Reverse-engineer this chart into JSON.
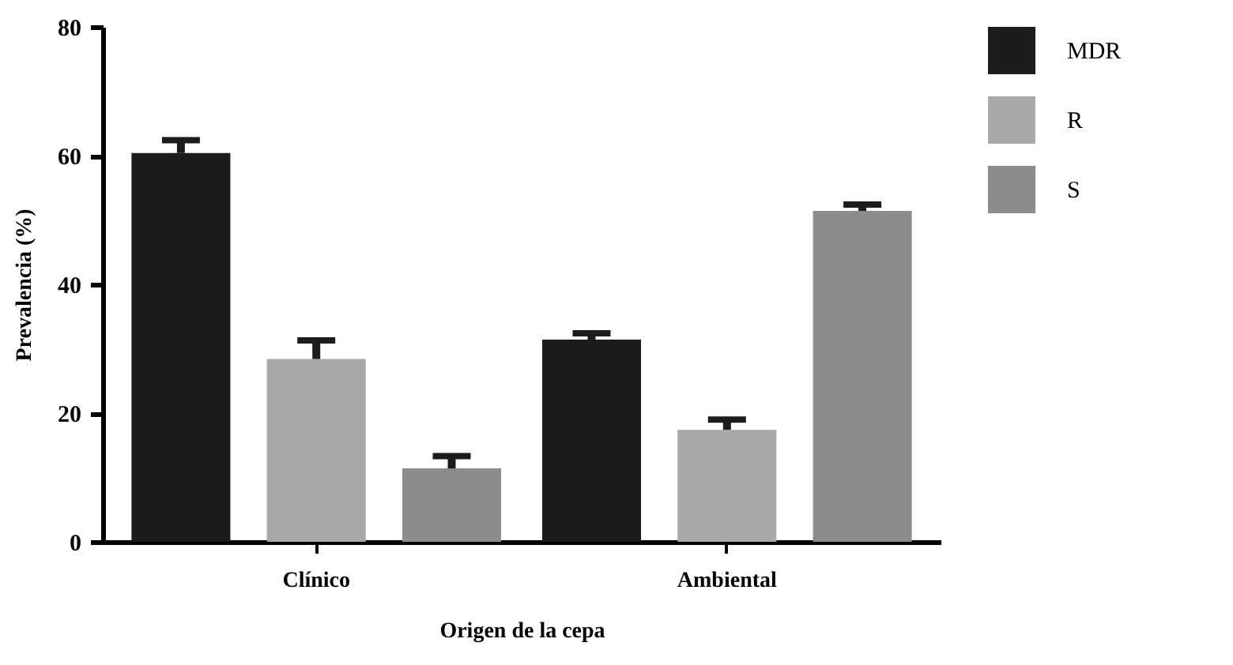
{
  "chart_data": {
    "type": "bar",
    "xlabel": "Origen de la cepa",
    "ylabel": "Prevalencia (%)",
    "categories": [
      "Clínico",
      "Ambiental"
    ],
    "series": [
      {
        "name": "MDR",
        "color": "#1c1c1c",
        "values": [
          60.4,
          31.4
        ],
        "errors": [
          [
            60.4,
            62.4
          ],
          [
            31.4,
            32.4
          ]
        ]
      },
      {
        "name": "R",
        "color": "#a9a9ab",
        "values": [
          28.4,
          17.4
        ],
        "errors": [
          [
            28.4,
            31.3
          ],
          [
            17.4,
            19
          ]
        ]
      },
      {
        "name": "S",
        "color": "#8c8c8c",
        "values": [
          11.4,
          51.4
        ],
        "errors": [
          [
            11.4,
            13.3
          ],
          [
            51.4,
            52.4
          ]
        ]
      }
    ],
    "ylim": [
      0,
      80
    ],
    "yticks": [
      0,
      20,
      40,
      60,
      80
    ],
    "grid": false,
    "legend": "top right"
  }
}
